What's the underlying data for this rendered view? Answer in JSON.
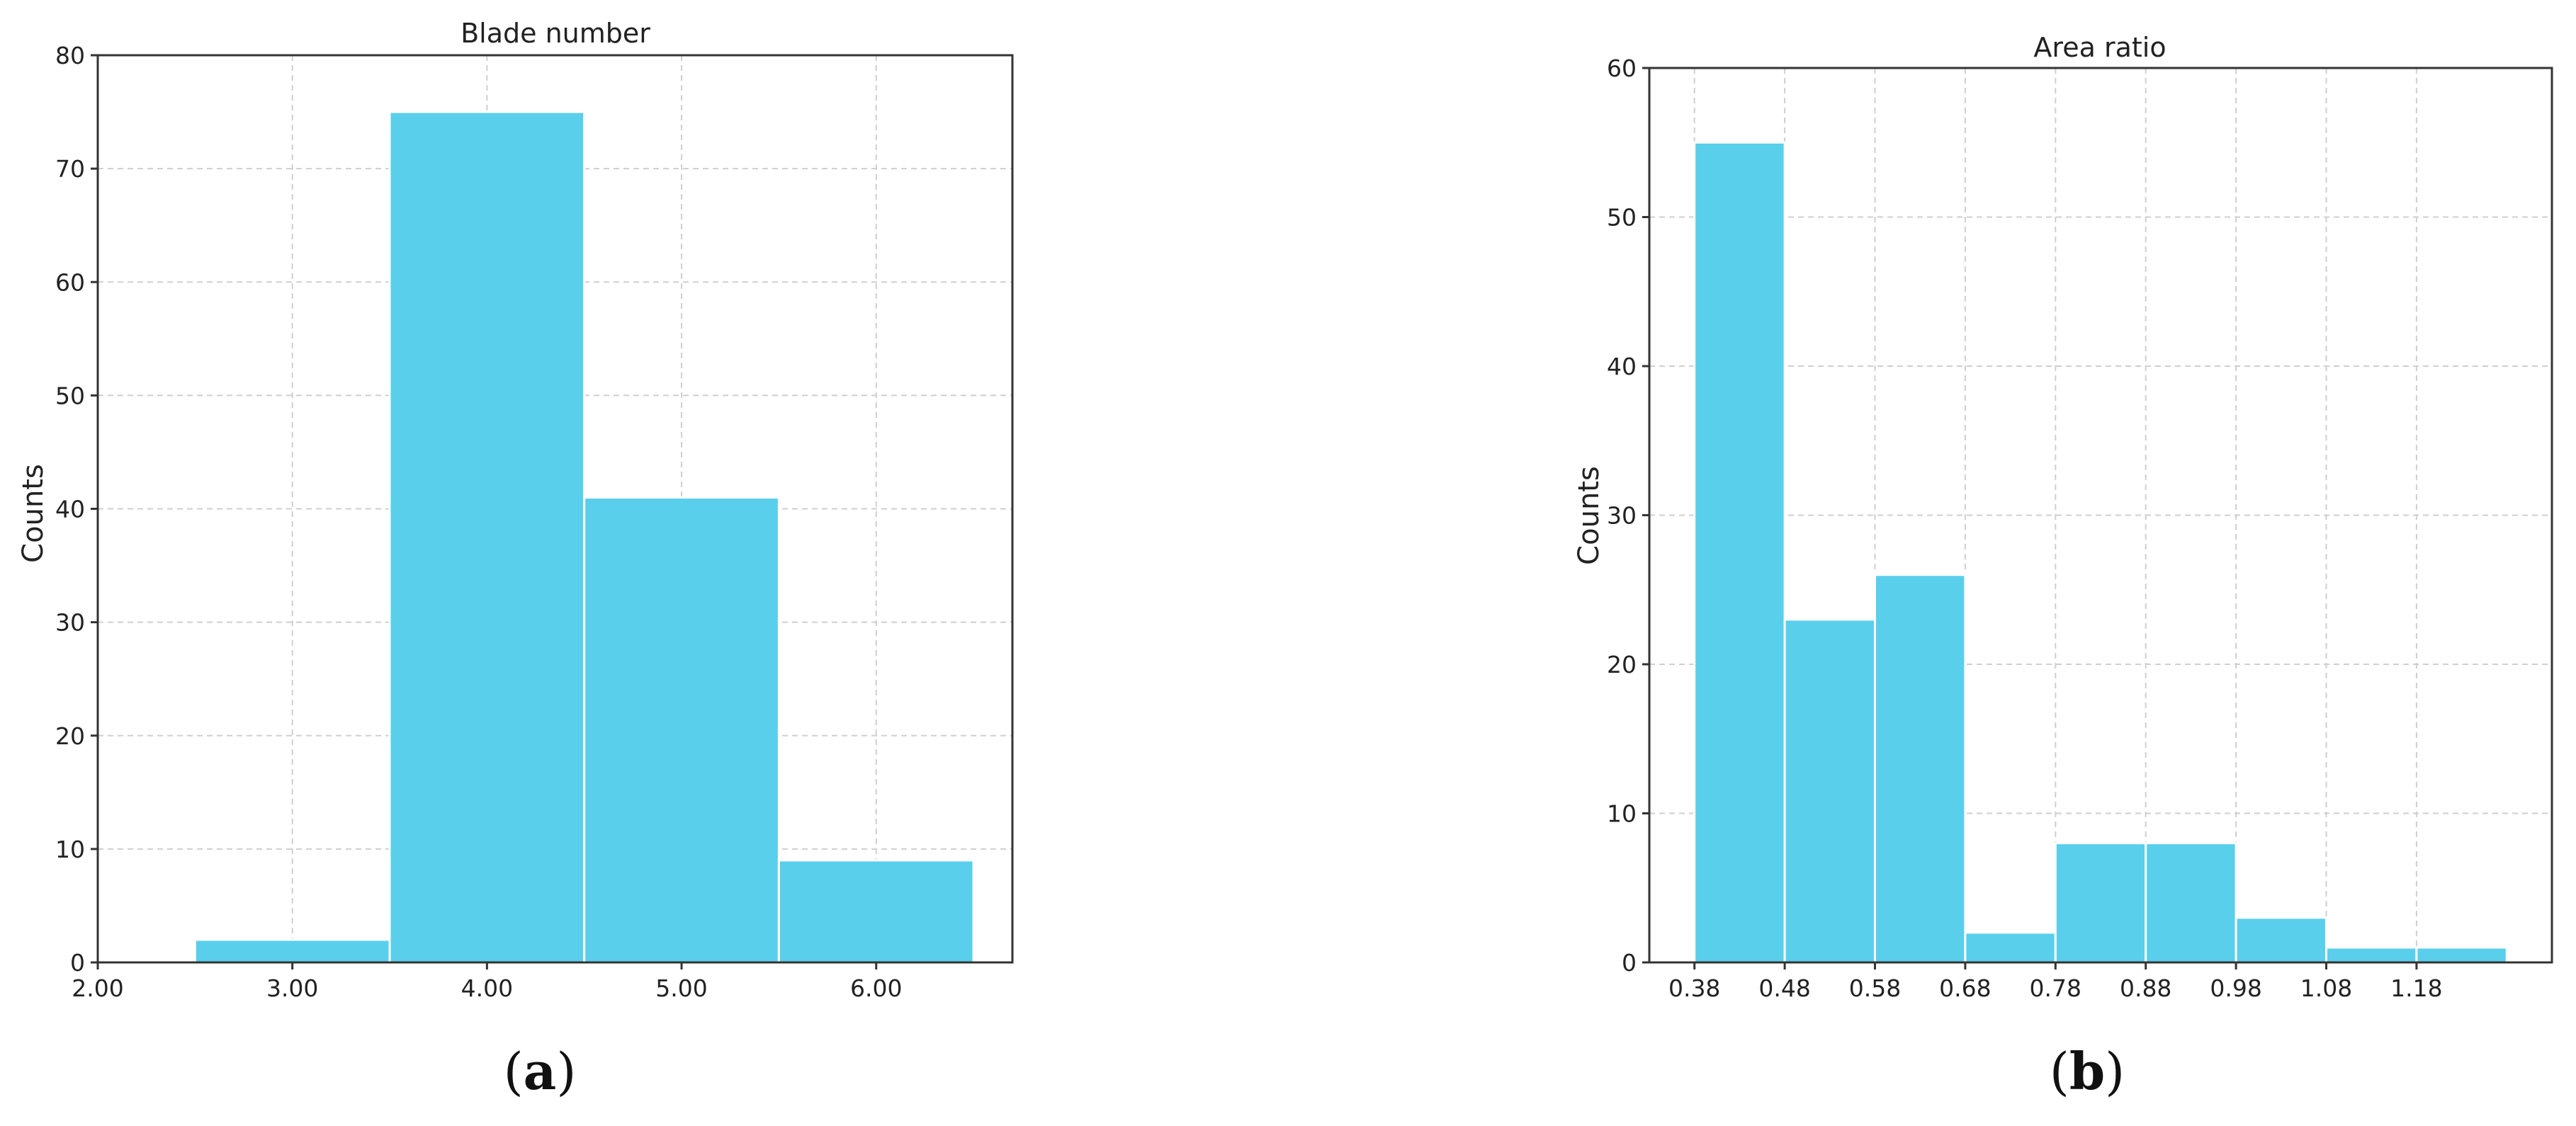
{
  "chart_data": [
    {
      "type": "bar",
      "title": "Blade number",
      "xlabel": "",
      "ylabel": "Counts",
      "bins": [
        [
          2.5,
          3.5
        ],
        [
          3.5,
          4.5
        ],
        [
          4.5,
          5.5
        ],
        [
          5.5,
          6.5
        ]
      ],
      "values": [
        2,
        75,
        41,
        9
      ],
      "xlim": [
        2.0,
        6.7
      ],
      "ylim": [
        0,
        80
      ],
      "xticks": [
        "2.00",
        "3.00",
        "4.00",
        "5.00",
        "6.00"
      ],
      "xtick_values": [
        2.0,
        3.0,
        4.0,
        5.0,
        6.0
      ],
      "yticks": [
        0,
        10,
        20,
        30,
        40,
        50,
        60,
        70,
        80
      ],
      "grid": true,
      "color": "#59cfec",
      "caption": {
        "open": "(",
        "letter": "a",
        "close": ")"
      }
    },
    {
      "type": "bar",
      "title": "Area ratio",
      "xlabel": "",
      "ylabel": "Counts",
      "bins": [
        [
          0.38,
          0.48
        ],
        [
          0.48,
          0.58
        ],
        [
          0.58,
          0.68
        ],
        [
          0.68,
          0.78
        ],
        [
          0.78,
          0.88
        ],
        [
          0.88,
          0.98
        ],
        [
          0.98,
          1.08
        ],
        [
          1.08,
          1.18
        ],
        [
          1.18,
          1.28
        ]
      ],
      "values": [
        55,
        23,
        26,
        2,
        8,
        8,
        3,
        1,
        1
      ],
      "xlim": [
        0.33,
        1.33
      ],
      "ylim": [
        0,
        60
      ],
      "xticks": [
        "0.38",
        "0.48",
        "0.58",
        "0.68",
        "0.78",
        "0.88",
        "0.98",
        "1.08",
        "1.18"
      ],
      "xtick_values": [
        0.38,
        0.48,
        0.58,
        0.68,
        0.78,
        0.88,
        0.98,
        1.08,
        1.18
      ],
      "yticks": [
        0,
        10,
        20,
        30,
        40,
        50,
        60
      ],
      "grid": true,
      "color": "#59cfec",
      "caption": {
        "open": "(",
        "letter": "b",
        "close": ")"
      }
    }
  ]
}
